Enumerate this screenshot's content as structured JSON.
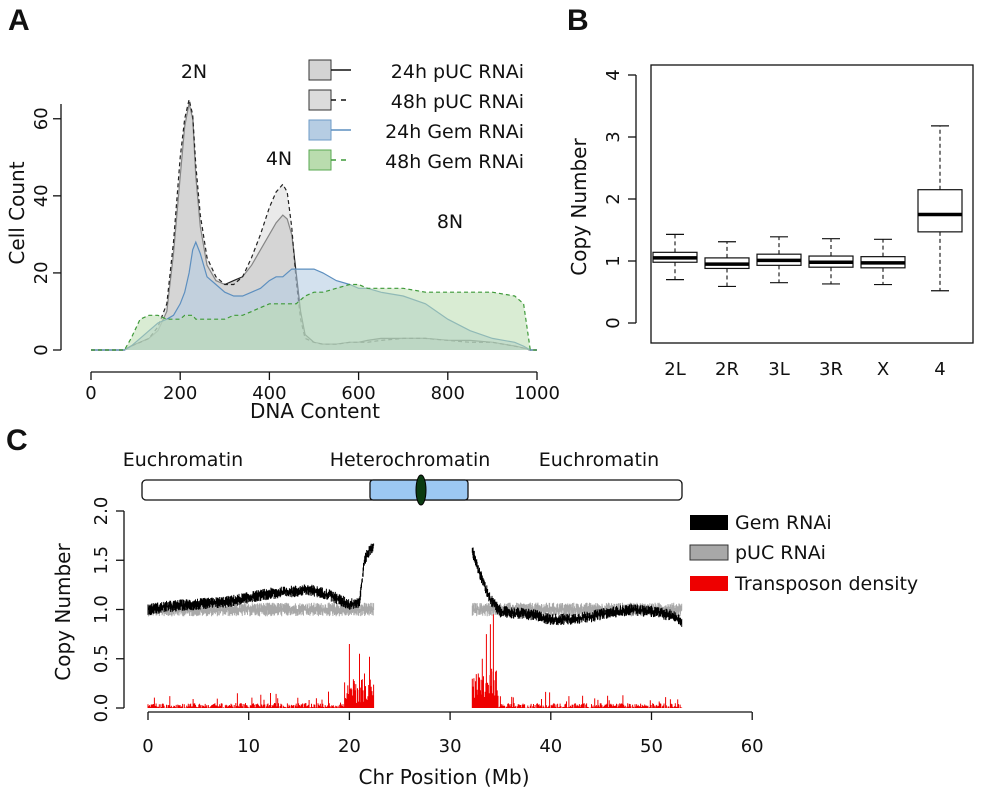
{
  "panels": {
    "A": {
      "letter": "A",
      "chart_data": {
        "type": "area",
        "xlabel": "DNA Content",
        "ylabel": "Cell Count",
        "xlim": [
          0,
          1000
        ],
        "ylim": [
          0,
          70
        ],
        "x_ticks": [
          "0",
          "200",
          "400",
          "600",
          "800",
          "1000"
        ],
        "y_ticks": [
          "0",
          "20",
          "40",
          "60"
        ],
        "annotations": [
          "2N",
          "4N",
          "8N"
        ],
        "x": [
          0,
          60,
          75,
          90,
          110,
          130,
          150,
          170,
          185,
          200,
          210,
          220,
          228,
          235,
          245,
          260,
          280,
          300,
          320,
          340,
          360,
          380,
          400,
          415,
          430,
          440,
          450,
          460,
          470,
          480,
          500,
          520,
          550,
          580,
          600,
          620,
          650,
          700,
          750,
          800,
          850,
          900,
          950,
          970,
          985,
          1000
        ],
        "series": [
          {
            "name": "24h pUC RNAi",
            "values": [
              0,
              0,
              0,
              1,
              2,
              3,
              5,
              10,
              25,
              45,
              58,
              64,
              60,
              45,
              32,
              22,
              18,
              17,
              18,
              19,
              22,
              26,
              30,
              33,
              35,
              34,
              30,
              20,
              10,
              4,
              2,
              1.5,
              1.5,
              2,
              2,
              2.5,
              3,
              3,
              3,
              2.5,
              2.5,
              2,
              1,
              0.5,
              0,
              0
            ]
          },
          {
            "name": "48h pUC RNAi",
            "values": [
              0,
              0,
              0,
              1,
              2,
              3,
              6,
              12,
              28,
              50,
              60,
              65,
              61,
              48,
              35,
              24,
              19,
              17,
              17,
              19,
              24,
              30,
              37,
              41,
              43,
              41,
              32,
              18,
              8,
              3,
              2,
              1.5,
              1.5,
              2,
              2,
              2,
              2.5,
              3,
              3,
              2.5,
              2,
              2,
              1,
              0.5,
              0,
              0
            ]
          },
          {
            "name": "24h Gem RNAi",
            "values": [
              0,
              0,
              0,
              1,
              3,
              5,
              7,
              8,
              9,
              12,
              15,
              20,
              26,
              28,
              25,
              19,
              17,
              15,
              14,
              14,
              15,
              16,
              18,
              19,
              19,
              20,
              21,
              21,
              21,
              21,
              21,
              20,
              18,
              17,
              16,
              16,
              15,
              14,
              12,
              8,
              5,
              3,
              2,
              1,
              0,
              0
            ]
          },
          {
            "name": "48h Gem RNAi",
            "values": [
              0,
              0,
              0,
              3,
              8,
              9,
              9,
              8,
              8,
              8,
              9,
              9,
              9,
              8,
              8,
              8,
              8,
              8,
              9,
              9,
              10,
              11,
              12,
              12,
              12,
              12,
              12,
              12,
              13,
              14,
              15,
              15,
              16,
              17,
              17,
              16,
              16,
              16,
              15,
              15,
              15,
              15,
              14,
              12,
              0,
              0
            ]
          }
        ]
      }
    },
    "B": {
      "letter": "B",
      "chart_data": {
        "type": "box",
        "ylabel": "Copy Number",
        "ylim": [
          -0.2,
          4.2
        ],
        "y_ticks": [
          "0",
          "1",
          "2",
          "3",
          "4"
        ],
        "categories": [
          "2L",
          "2R",
          "3L",
          "3R",
          "X",
          "4"
        ],
        "boxes": [
          {
            "whisker_low": 0.7,
            "q1": 0.98,
            "median": 1.05,
            "q3": 1.14,
            "whisker_high": 1.43
          },
          {
            "whisker_low": 0.59,
            "q1": 0.88,
            "median": 0.95,
            "q3": 1.05,
            "whisker_high": 1.31
          },
          {
            "whisker_low": 0.65,
            "q1": 0.93,
            "median": 1.01,
            "q3": 1.11,
            "whisker_high": 1.39
          },
          {
            "whisker_low": 0.63,
            "q1": 0.9,
            "median": 0.98,
            "q3": 1.08,
            "whisker_high": 1.36
          },
          {
            "whisker_low": 0.62,
            "q1": 0.89,
            "median": 0.97,
            "q3": 1.07,
            "whisker_high": 1.35
          },
          {
            "whisker_low": 0.52,
            "q1": 1.47,
            "median": 1.75,
            "q3": 2.15,
            "whisker_high": 3.18
          }
        ]
      }
    },
    "C": {
      "letter": "C",
      "chromosome_labels": [
        "Euchromatin",
        "Heterochromatin",
        "Euchromatin"
      ],
      "chart_data": {
        "type": "line",
        "xlabel": "Chr Position (Mb)",
        "ylabel": "Copy Number",
        "xlim": [
          0,
          60
        ],
        "ylim": [
          0,
          2
        ],
        "x_ticks": [
          "0",
          "10",
          "20",
          "30",
          "40",
          "50",
          "60"
        ],
        "y_ticks": [
          "0.0",
          "0.5",
          "1.0",
          "1.5",
          "2.0"
        ],
        "legend": [
          "Gem RNAi",
          "pUC RNAi",
          "Transposon density"
        ],
        "gap_mb": [
          22.4,
          32.2
        ],
        "series": [
          {
            "name": "Gem RNAi",
            "x": [
              0,
              2,
              4,
              6,
              8,
              10,
              12,
              14,
              16,
              18,
              20,
              21,
              21.5,
              22,
              22.4,
              32.2,
              33,
              34,
              35,
              36,
              38,
              40,
              42,
              44,
              46,
              48,
              50,
              52,
              53
            ],
            "values": [
              1.0,
              1.03,
              1.05,
              1.06,
              1.08,
              1.12,
              1.16,
              1.18,
              1.2,
              1.15,
              1.05,
              1.08,
              1.5,
              1.6,
              1.65,
              1.6,
              1.35,
              1.1,
              0.98,
              0.97,
              0.95,
              0.9,
              0.9,
              0.93,
              0.97,
              1.0,
              0.98,
              0.94,
              0.88
            ]
          },
          {
            "name": "pUC RNAi",
            "x": [
              0,
              10,
              20,
              22.4,
              32.2,
              40,
              53
            ],
            "values": [
              1.0,
              1.0,
              1.0,
              1.0,
              1.0,
              1.0,
              1.0
            ]
          },
          {
            "name": "Transposon density",
            "x": [
              20,
              20.5,
              21,
              21.5,
              22,
              32.8,
              33.2,
              33.6,
              34,
              34.3,
              34.6,
              35
            ],
            "values": [
              0.65,
              0.25,
              0.55,
              0.35,
              0.52,
              0.35,
              0.5,
              0.75,
              0.85,
              0.95,
              0.3,
              0.12
            ]
          }
        ]
      }
    }
  },
  "colors": {
    "pUC24_fill": "#c9c9c9",
    "pUC48_fill": "#d9d9d9",
    "gem24_fill": "#b6cde3",
    "gem24_line": "#5d8fbf",
    "gem48_fill": "#b9dcae",
    "gem48_line": "#3f9a3a",
    "gem_rnai": "#000000",
    "puc_rnai": "#a8a8a8",
    "transposon": "#ee0000",
    "hetero_fill": "#9cc8f2",
    "centromere": "#0b3b12"
  }
}
